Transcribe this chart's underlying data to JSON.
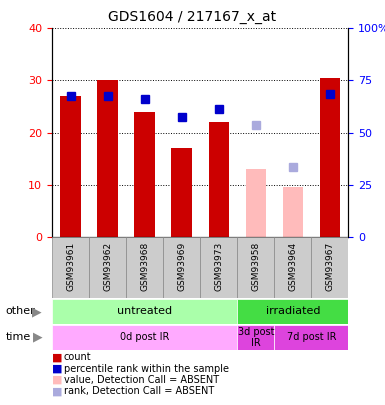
{
  "title": "GDS1604 / 217167_x_at",
  "samples": [
    "GSM93961",
    "GSM93962",
    "GSM93968",
    "GSM93969",
    "GSM93973",
    "GSM93958",
    "GSM93964",
    "GSM93967"
  ],
  "bar_heights": [
    27.0,
    30.0,
    24.0,
    17.0,
    22.0,
    13.0,
    9.5,
    30.5
  ],
  "bar_colors": [
    "#cc0000",
    "#cc0000",
    "#cc0000",
    "#cc0000",
    "#cc0000",
    "#ffbbbb",
    "#ffbbbb",
    "#cc0000"
  ],
  "rank_values": [
    27.0,
    27.0,
    26.5,
    23.0,
    24.5,
    21.5,
    13.5,
    27.5
  ],
  "rank_absent": [
    false,
    false,
    false,
    false,
    false,
    true,
    true,
    false
  ],
  "ylim_left": [
    0,
    40
  ],
  "ylim_right": [
    0,
    100
  ],
  "yticks_left": [
    0,
    10,
    20,
    30,
    40
  ],
  "yticks_right": [
    0,
    25,
    50,
    75,
    100
  ],
  "yticklabels_right": [
    "0",
    "25",
    "50",
    "75",
    "100%"
  ],
  "group_other": [
    {
      "label": "untreated",
      "span": [
        0,
        5
      ],
      "color": "#aaffaa"
    },
    {
      "label": "irradiated",
      "span": [
        5,
        8
      ],
      "color": "#44dd44"
    }
  ],
  "group_time": [
    {
      "label": "0d post IR",
      "span": [
        0,
        5
      ],
      "color": "#ffaaff"
    },
    {
      "label": "3d post\nIR",
      "span": [
        5,
        6
      ],
      "color": "#dd44dd"
    },
    {
      "label": "7d post IR",
      "span": [
        6,
        8
      ],
      "color": "#dd44dd"
    }
  ],
  "legend_items": [
    {
      "label": "count",
      "color": "#cc0000"
    },
    {
      "label": "percentile rank within the sample",
      "color": "#0000cc"
    },
    {
      "label": "value, Detection Call = ABSENT",
      "color": "#ffbbbb"
    },
    {
      "label": "rank, Detection Call = ABSENT",
      "color": "#aaaadd"
    }
  ],
  "bar_width": 0.55,
  "rank_marker_size": 6,
  "rank_absent_color": "#aaaadd",
  "rank_present_color": "#0000cc",
  "left_axis_color": "red",
  "right_axis_color": "blue",
  "grid_color": "black",
  "label_bg_color": "#cccccc",
  "label_border_color": "#888888"
}
